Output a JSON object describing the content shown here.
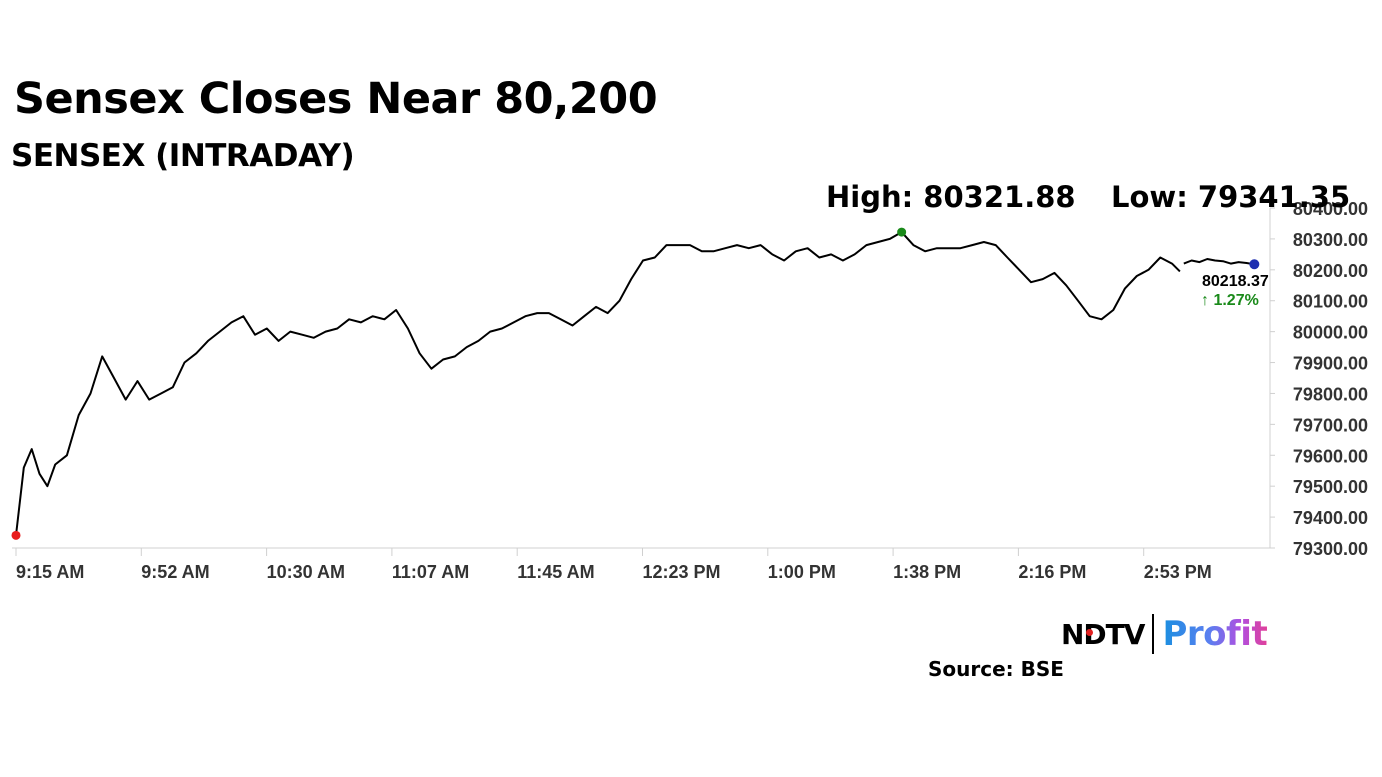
{
  "headline": "Sensex Closes Near 80,200",
  "subheadline": "SENSEX (INTRADAY)",
  "high_label": "High: 80321.88",
  "low_label": "Low: 79341.35",
  "last_value_label": "80218.37",
  "change_label": "↑ 1.27%",
  "source": "Source: BSE",
  "brand": {
    "ndtv": "NDTV",
    "profit": "Profit"
  },
  "colors": {
    "line": "#000000",
    "open_marker": "#e81c1c",
    "high_marker": "#1a8a1a",
    "close_marker": "#1f2fb0",
    "change_positive": "#1a8a1a",
    "axis": "#d0d0d0"
  },
  "chart_data": {
    "type": "line",
    "title": "SENSEX (INTRADAY)",
    "xlabel": "",
    "ylabel": "",
    "ylim": [
      79300,
      80400
    ],
    "yticks": [
      "80400.00",
      "80300.00",
      "80200.00",
      "80100.00",
      "80000.00",
      "79900.00",
      "79800.00",
      "79700.00",
      "79600.00",
      "79500.00",
      "79400.00",
      "79300.00"
    ],
    "xticks": [
      "9:15 AM",
      "9:52 AM",
      "10:30 AM",
      "11:07 AM",
      "11:45 AM",
      "12:23 PM",
      "1:00 PM",
      "1:38 PM",
      "2:16 PM",
      "2:53 PM"
    ],
    "grid": false,
    "y_axis_side": "right",
    "series": [
      {
        "points": [
          {
            "t": 0,
            "v": 79341
          },
          {
            "t": 2,
            "v": 79560
          },
          {
            "t": 4,
            "v": 79620
          },
          {
            "t": 6,
            "v": 79540
          },
          {
            "t": 8,
            "v": 79500
          },
          {
            "t": 10,
            "v": 79570
          },
          {
            "t": 13,
            "v": 79600
          },
          {
            "t": 16,
            "v": 79730
          },
          {
            "t": 19,
            "v": 79800
          },
          {
            "t": 22,
            "v": 79920
          },
          {
            "t": 25,
            "v": 79850
          },
          {
            "t": 28,
            "v": 79780
          },
          {
            "t": 31,
            "v": 79840
          },
          {
            "t": 34,
            "v": 79780
          },
          {
            "t": 37,
            "v": 79800
          },
          {
            "t": 40,
            "v": 79820
          },
          {
            "t": 43,
            "v": 79900
          },
          {
            "t": 46,
            "v": 79930
          },
          {
            "t": 49,
            "v": 79970
          },
          {
            "t": 52,
            "v": 80000
          },
          {
            "t": 55,
            "v": 80030
          },
          {
            "t": 58,
            "v": 80050
          },
          {
            "t": 61,
            "v": 79990
          },
          {
            "t": 64,
            "v": 80010
          },
          {
            "t": 67,
            "v": 79970
          },
          {
            "t": 70,
            "v": 80000
          },
          {
            "t": 73,
            "v": 79990
          },
          {
            "t": 76,
            "v": 79980
          },
          {
            "t": 79,
            "v": 80000
          },
          {
            "t": 82,
            "v": 80010
          },
          {
            "t": 85,
            "v": 80040
          },
          {
            "t": 88,
            "v": 80030
          },
          {
            "t": 91,
            "v": 80050
          },
          {
            "t": 94,
            "v": 80040
          },
          {
            "t": 97,
            "v": 80070
          },
          {
            "t": 100,
            "v": 80010
          },
          {
            "t": 103,
            "v": 79930
          },
          {
            "t": 106,
            "v": 79880
          },
          {
            "t": 109,
            "v": 79910
          },
          {
            "t": 112,
            "v": 79920
          },
          {
            "t": 115,
            "v": 79950
          },
          {
            "t": 118,
            "v": 79970
          },
          {
            "t": 121,
            "v": 80000
          },
          {
            "t": 124,
            "v": 80010
          },
          {
            "t": 127,
            "v": 80030
          },
          {
            "t": 130,
            "v": 80050
          },
          {
            "t": 133,
            "v": 80060
          },
          {
            "t": 136,
            "v": 80060
          },
          {
            "t": 139,
            "v": 80040
          },
          {
            "t": 142,
            "v": 80020
          },
          {
            "t": 145,
            "v": 80050
          },
          {
            "t": 148,
            "v": 80080
          },
          {
            "t": 151,
            "v": 80060
          },
          {
            "t": 154,
            "v": 80100
          },
          {
            "t": 157,
            "v": 80170
          },
          {
            "t": 160,
            "v": 80230
          },
          {
            "t": 163,
            "v": 80240
          },
          {
            "t": 166,
            "v": 80280
          },
          {
            "t": 169,
            "v": 80280
          },
          {
            "t": 172,
            "v": 80280
          },
          {
            "t": 175,
            "v": 80260
          },
          {
            "t": 178,
            "v": 80260
          },
          {
            "t": 181,
            "v": 80270
          },
          {
            "t": 184,
            "v": 80280
          },
          {
            "t": 187,
            "v": 80270
          },
          {
            "t": 190,
            "v": 80280
          },
          {
            "t": 193,
            "v": 80250
          },
          {
            "t": 196,
            "v": 80230
          },
          {
            "t": 199,
            "v": 80260
          },
          {
            "t": 202,
            "v": 80270
          },
          {
            "t": 205,
            "v": 80240
          },
          {
            "t": 208,
            "v": 80250
          },
          {
            "t": 211,
            "v": 80230
          },
          {
            "t": 214,
            "v": 80250
          },
          {
            "t": 217,
            "v": 80280
          },
          {
            "t": 220,
            "v": 80290
          },
          {
            "t": 223,
            "v": 80300
          },
          {
            "t": 226,
            "v": 80322
          },
          {
            "t": 229,
            "v": 80280
          },
          {
            "t": 232,
            "v": 80260
          },
          {
            "t": 235,
            "v": 80270
          },
          {
            "t": 238,
            "v": 80270
          },
          {
            "t": 241,
            "v": 80270
          },
          {
            "t": 244,
            "v": 80280
          },
          {
            "t": 247,
            "v": 80290
          },
          {
            "t": 250,
            "v": 80280
          },
          {
            "t": 253,
            "v": 80240
          },
          {
            "t": 256,
            "v": 80200
          },
          {
            "t": 259,
            "v": 80160
          },
          {
            "t": 262,
            "v": 80170
          },
          {
            "t": 265,
            "v": 80190
          },
          {
            "t": 268,
            "v": 80150
          },
          {
            "t": 271,
            "v": 80100
          },
          {
            "t": 274,
            "v": 80050
          },
          {
            "t": 277,
            "v": 80040
          },
          {
            "t": 280,
            "v": 80070
          },
          {
            "t": 283,
            "v": 80140
          },
          {
            "t": 286,
            "v": 80180
          },
          {
            "t": 289,
            "v": 80200
          },
          {
            "t": 292,
            "v": 80240
          },
          {
            "t": 295,
            "v": 80220
          },
          {
            "t": 297,
            "v": 80195
          }
        ]
      },
      {
        "points": [
          {
            "t": 298,
            "v": 80220
          },
          {
            "t": 300,
            "v": 80230
          },
          {
            "t": 302,
            "v": 80225
          },
          {
            "t": 304,
            "v": 80235
          },
          {
            "t": 306,
            "v": 80230
          },
          {
            "t": 308,
            "v": 80228
          },
          {
            "t": 310,
            "v": 80220
          },
          {
            "t": 312,
            "v": 80225
          },
          {
            "t": 314,
            "v": 80222
          },
          {
            "t": 316,
            "v": 80218
          }
        ]
      }
    ],
    "markers": {
      "open": {
        "t": 0,
        "v": 79341
      },
      "high": {
        "t": 226,
        "v": 80322
      },
      "close": {
        "t": 316,
        "v": 80218
      }
    }
  }
}
